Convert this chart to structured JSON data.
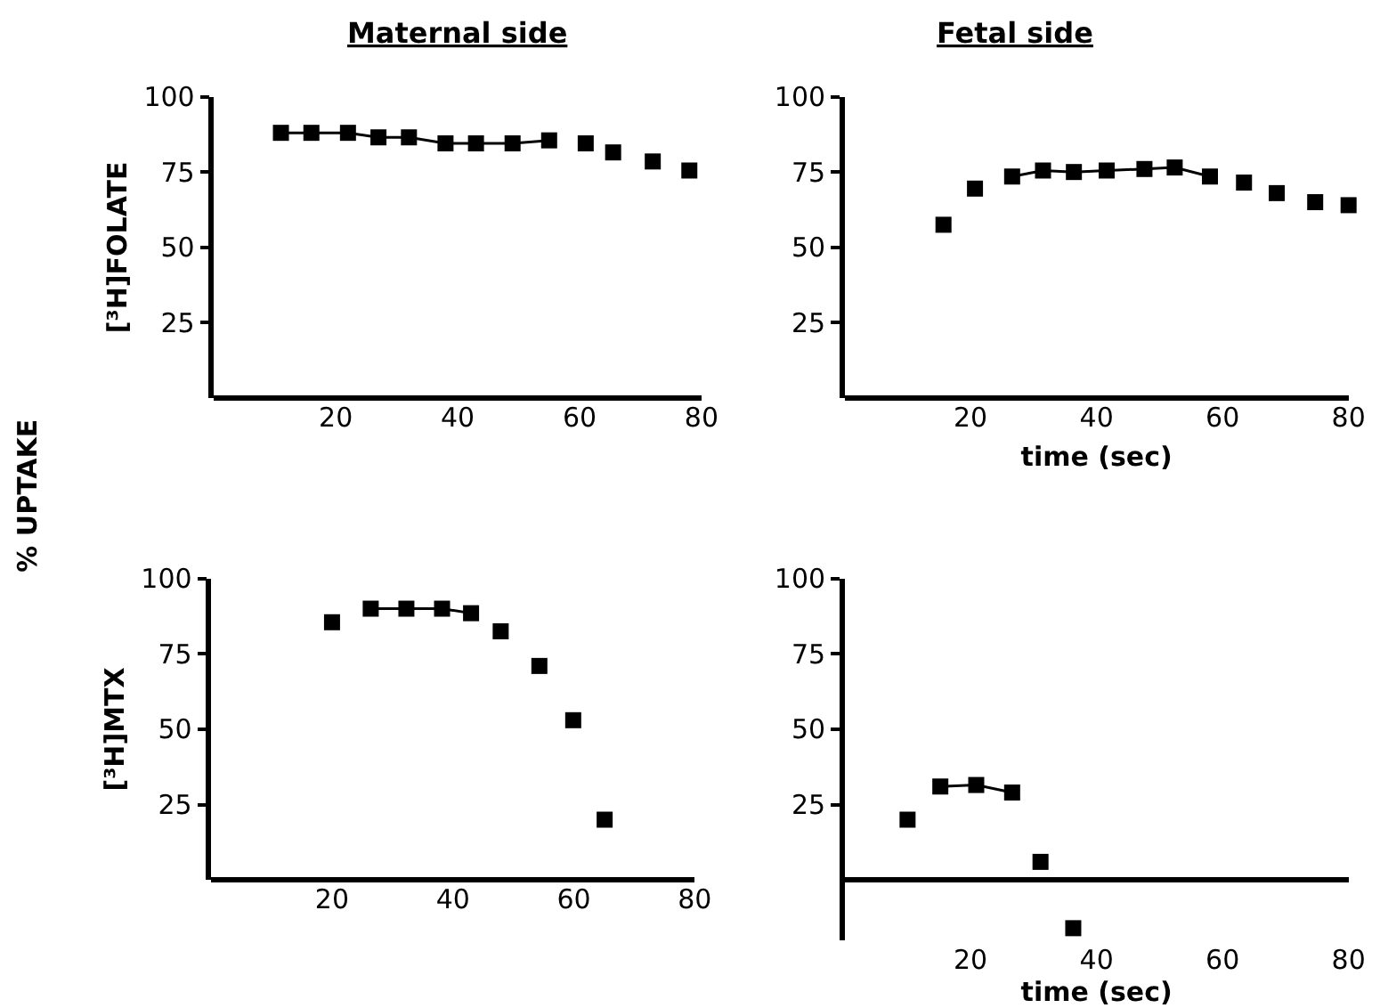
{
  "chart_data": [
    {
      "type": "scatter",
      "title": "Maternal side",
      "ylabel": "[³H]FOLATE",
      "xlim": [
        0,
        80
      ],
      "xticks": [
        20,
        40,
        60,
        80
      ],
      "ylim": [
        0,
        100
      ],
      "yticks": [
        25,
        50,
        75,
        100
      ],
      "marker": "square",
      "series": [
        {
          "type": "line",
          "color": "#000000",
          "x": [
            11,
            16,
            22,
            27,
            32,
            38,
            43,
            49,
            55
          ],
          "values": [
            88,
            88,
            88,
            86.5,
            86.5,
            84.5,
            84.5,
            84.5,
            85.5
          ]
        },
        {
          "type": "scatter",
          "color": "#000000",
          "x": [
            61,
            65.5,
            72,
            78
          ],
          "values": [
            84.5,
            81.5,
            78.5,
            75.5
          ]
        }
      ],
      "annotations": [
        "% UPTAKE"
      ]
    },
    {
      "type": "scatter",
      "title": "Fetal side",
      "xlabel": "time (sec)",
      "xlim": [
        0,
        80
      ],
      "xticks": [
        20,
        40,
        60,
        80
      ],
      "ylim": [
        0,
        100
      ],
      "yticks": [
        25,
        50,
        75,
        100
      ],
      "marker": "square",
      "series": [
        {
          "type": "line",
          "color": "#000000",
          "x": [
            26.6,
            31.5,
            36.4,
            41.6,
            47.6,
            52.4,
            58
          ],
          "values": [
            73.5,
            75.5,
            75,
            75.5,
            76,
            76.5,
            73.5
          ]
        },
        {
          "type": "scatter",
          "color": "#000000",
          "x": [
            15.7,
            20.7,
            63.4,
            68.6,
            74.7,
            80
          ],
          "values": [
            57.5,
            69.5,
            71.5,
            68,
            65,
            64
          ]
        }
      ]
    },
    {
      "type": "scatter",
      "ylabel": "[³H]MTX",
      "xlim": [
        0,
        80
      ],
      "xticks": [
        20,
        40,
        60,
        80
      ],
      "ylim": [
        0,
        100
      ],
      "yticks": [
        25,
        50,
        75,
        100
      ],
      "marker": "square",
      "series": [
        {
          "type": "line",
          "color": "#000000",
          "x": [
            26.4,
            32.3,
            38.2,
            43
          ],
          "values": [
            90,
            90,
            90,
            88.5
          ]
        },
        {
          "type": "scatter",
          "color": "#000000",
          "x": [
            20,
            47.9,
            54.3,
            59.9,
            65.1
          ],
          "values": [
            85.5,
            82.5,
            71,
            53,
            20
          ]
        }
      ]
    },
    {
      "type": "scatter",
      "xlabel": "time (sec)",
      "xlim": [
        0,
        80
      ],
      "xticks": [
        20,
        40,
        60,
        80
      ],
      "ylim": [
        -20,
        100
      ],
      "yticks": [
        25,
        50,
        75,
        100
      ],
      "marker": "square",
      "series": [
        {
          "type": "line",
          "color": "#000000",
          "x": [
            15.2,
            20.9,
            26.6
          ],
          "values": [
            31,
            31.5,
            29
          ]
        },
        {
          "type": "scatter",
          "color": "#000000",
          "x": [
            10,
            31.1,
            36.3
          ],
          "values": [
            20,
            6,
            -16
          ]
        }
      ]
    }
  ]
}
